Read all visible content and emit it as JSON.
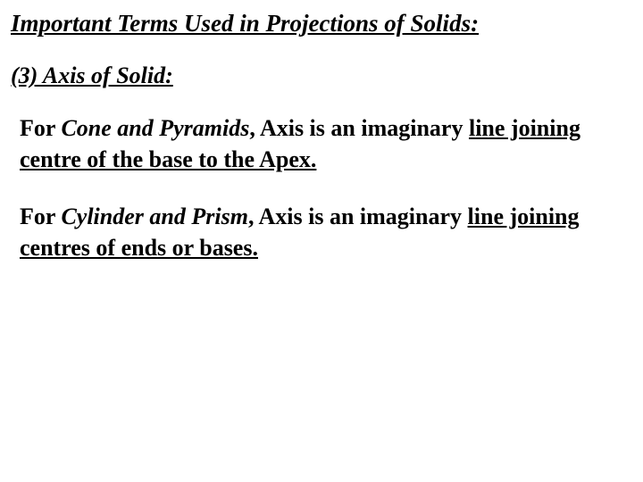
{
  "colors": {
    "background": "#ffffff",
    "text": "#000000"
  },
  "typography": {
    "font_family": "Times New Roman",
    "title_fontsize_pt": 27,
    "subheading_fontsize_pt": 26,
    "body_fontsize_pt": 26,
    "title_style": "bold italic underline",
    "subheading_style": "bold italic underline",
    "body_style": "bold"
  },
  "title": "Important Terms Used in Projections of Solids:",
  "subheading": "(3) Axis of Solid:",
  "para1": {
    "lead": "For ",
    "em": "Cone and Pyramids",
    "mid": ", Axis is an imaginary ",
    "ul": "line joining centre of the base to the Apex."
  },
  "para2": {
    "lead": "For ",
    "em": "Cylinder and Prism",
    "mid": ", Axis is an imaginary ",
    "ul": "line joining centres of ends or bases."
  }
}
